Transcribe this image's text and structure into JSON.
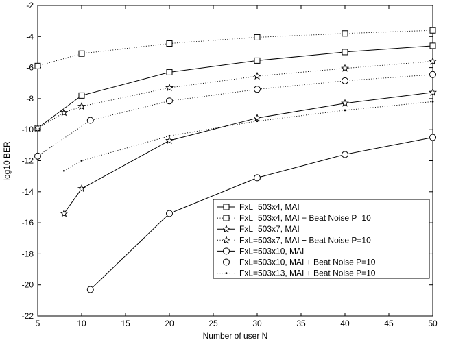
{
  "chart_data": {
    "type": "line",
    "title": "",
    "xlabel": "Number of user N",
    "ylabel": "log10 BER",
    "xlim": [
      5,
      50
    ],
    "ylim": [
      -22,
      -2
    ],
    "xticks": [
      5,
      10,
      15,
      20,
      25,
      30,
      35,
      40,
      45,
      50
    ],
    "yticks": [
      -22,
      -20,
      -18,
      -16,
      -14,
      -12,
      -10,
      -8,
      -6,
      -4,
      -2
    ],
    "grid": false,
    "legend_position": "lower-right",
    "series": [
      {
        "name": "FxL=503x4, MAI",
        "line": "solid",
        "marker": "square",
        "x": [
          5,
          10,
          20,
          30,
          40,
          50
        ],
        "y": [
          -9.9,
          -7.8,
          -6.3,
          -5.55,
          -5.0,
          -4.6
        ]
      },
      {
        "name": "FxL=503x4, MAI + Beat Noise P=10",
        "line": "dotted",
        "marker": "square",
        "x": [
          5,
          10,
          20,
          30,
          40,
          50
        ],
        "y": [
          -5.9,
          -5.1,
          -4.45,
          -4.05,
          -3.8,
          -3.6
        ]
      },
      {
        "name": "FxL=503x7, MAI",
        "line": "solid",
        "marker": "star",
        "x": [
          8,
          10,
          20,
          30,
          40,
          50
        ],
        "y": [
          -15.4,
          -13.8,
          -10.7,
          -9.25,
          -8.3,
          -7.6
        ]
      },
      {
        "name": "FxL=503x7, MAI + Beat Noise P=10",
        "line": "dotted",
        "marker": "star",
        "x": [
          5,
          8,
          10,
          20,
          30,
          40,
          50
        ],
        "y": [
          -9.9,
          -8.9,
          -8.5,
          -7.3,
          -6.55,
          -6.05,
          -5.6
        ]
      },
      {
        "name": "FxL=503x10, MAI",
        "line": "solid",
        "marker": "circle",
        "x": [
          11,
          20,
          30,
          40,
          50
        ],
        "y": [
          -20.3,
          -15.4,
          -13.1,
          -11.6,
          -10.5
        ]
      },
      {
        "name": "FxL=503x10, MAI + Beat Noise P=10",
        "line": "dotted",
        "marker": "circle",
        "x": [
          5,
          11,
          20,
          30,
          40,
          50
        ],
        "y": [
          -11.7,
          -9.4,
          -8.15,
          -7.4,
          -6.85,
          -6.45
        ]
      },
      {
        "name": "FxL=503x13, MAI + Beat Noise P=10",
        "line": "dotted",
        "marker": "dot",
        "x": [
          8,
          10,
          20,
          30,
          40,
          50
        ],
        "y": [
          -12.65,
          -12.0,
          -10.4,
          -9.45,
          -8.75,
          -8.2
        ]
      }
    ]
  }
}
